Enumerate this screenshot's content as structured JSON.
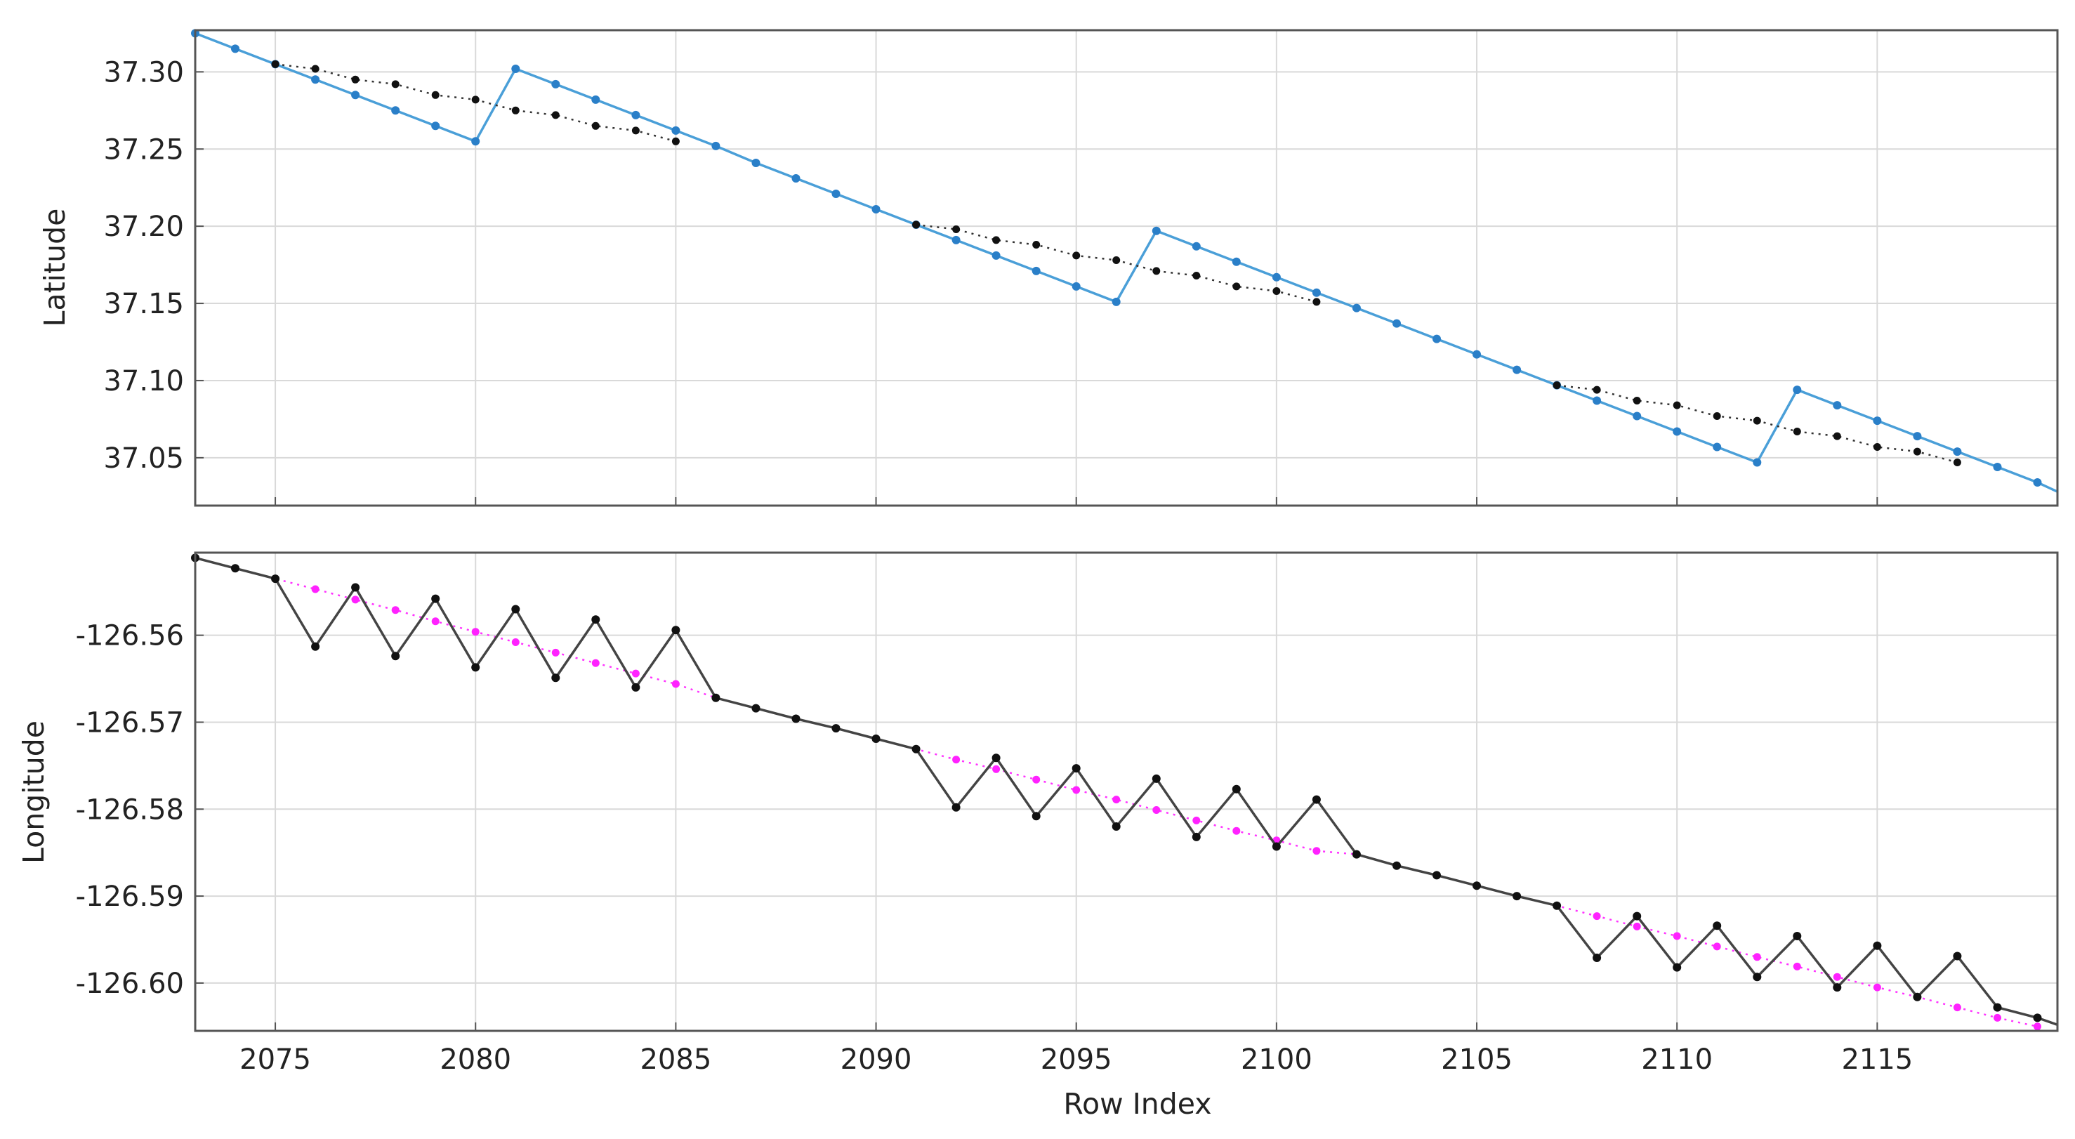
{
  "chart_data": [
    {
      "type": "line",
      "ylabel": "Latitude",
      "xlabel": "",
      "xlim": [
        2073,
        2119.5
      ],
      "ylim": [
        37.019,
        37.327
      ],
      "x_ticks": [
        2075,
        2080,
        2085,
        2090,
        2095,
        2100,
        2105,
        2110,
        2115
      ],
      "y_ticks": [
        37.05,
        37.1,
        37.15,
        37.2,
        37.25,
        37.3
      ],
      "y_tick_labels": [
        "37.05",
        "37.10",
        "37.15",
        "37.20",
        "37.25",
        "37.30"
      ],
      "grid": true,
      "series": [
        {
          "color": "#4a9fd8",
          "line": "solid",
          "marker_color": "#2a7fc8",
          "points": [
            [
              2073,
              37.325
            ],
            [
              2074,
              37.315
            ],
            [
              2075,
              37.305
            ],
            [
              2076,
              37.295
            ],
            [
              2077,
              37.285
            ],
            [
              2078,
              37.275
            ],
            [
              2079,
              37.265
            ],
            [
              2080,
              37.255
            ],
            [
              2081,
              37.302
            ],
            [
              2082,
              37.292
            ],
            [
              2083,
              37.282
            ],
            [
              2084,
              37.272
            ],
            [
              2085,
              37.262
            ],
            [
              2086,
              37.252
            ],
            [
              2087,
              37.241
            ],
            [
              2088,
              37.231
            ],
            [
              2089,
              37.221
            ],
            [
              2090,
              37.211
            ],
            [
              2091,
              37.201
            ],
            [
              2092,
              37.191
            ],
            [
              2093,
              37.181
            ],
            [
              2094,
              37.171
            ],
            [
              2095,
              37.161
            ],
            [
              2096,
              37.151
            ],
            [
              2097,
              37.197
            ],
            [
              2098,
              37.187
            ],
            [
              2099,
              37.177
            ],
            [
              2100,
              37.167
            ],
            [
              2101,
              37.157
            ],
            [
              2102,
              37.147
            ],
            [
              2103,
              37.137
            ],
            [
              2104,
              37.127
            ],
            [
              2105,
              37.117
            ],
            [
              2106,
              37.107
            ],
            [
              2107,
              37.097
            ],
            [
              2108,
              37.087
            ],
            [
              2109,
              37.077
            ],
            [
              2110,
              37.067
            ],
            [
              2111,
              37.057
            ],
            [
              2112,
              37.047
            ],
            [
              2113,
              37.094
            ],
            [
              2114,
              37.084
            ],
            [
              2115,
              37.074
            ],
            [
              2116,
              37.064
            ],
            [
              2117,
              37.054
            ],
            [
              2118,
              37.044
            ],
            [
              2119,
              37.034
            ],
            [
              2119.5,
              37.028
            ]
          ]
        },
        {
          "color": "#333333",
          "line": "dotted",
          "marker_color": "#111111",
          "points": [
            [
              2075,
              37.305
            ],
            [
              2076,
              37.302
            ],
            [
              2077,
              37.295
            ],
            [
              2078,
              37.292
            ],
            [
              2079,
              37.285
            ],
            [
              2080,
              37.282
            ],
            [
              2081,
              37.275
            ],
            [
              2082,
              37.272
            ],
            [
              2083,
              37.265
            ],
            [
              2084,
              37.262
            ],
            [
              2085,
              37.255
            ]
          ]
        },
        {
          "color": "#333333",
          "line": "dotted",
          "marker_color": "#111111",
          "points": [
            [
              2091,
              37.201
            ],
            [
              2092,
              37.198
            ],
            [
              2093,
              37.191
            ],
            [
              2094,
              37.188
            ],
            [
              2095,
              37.181
            ],
            [
              2096,
              37.178
            ],
            [
              2097,
              37.171
            ],
            [
              2098,
              37.168
            ],
            [
              2099,
              37.161
            ],
            [
              2100,
              37.158
            ],
            [
              2101,
              37.151
            ]
          ]
        },
        {
          "color": "#333333",
          "line": "dotted",
          "marker_color": "#111111",
          "points": [
            [
              2107,
              37.097
            ],
            [
              2108,
              37.094
            ],
            [
              2109,
              37.087
            ],
            [
              2110,
              37.084
            ],
            [
              2111,
              37.077
            ],
            [
              2112,
              37.074
            ],
            [
              2113,
              37.067
            ],
            [
              2114,
              37.064
            ],
            [
              2115,
              37.057
            ],
            [
              2116,
              37.054
            ],
            [
              2117,
              37.047
            ]
          ]
        }
      ]
    },
    {
      "type": "line",
      "ylabel": "Longitude",
      "xlabel": "Row Index",
      "xlim": [
        2073,
        2119.5
      ],
      "ylim": [
        -126.6055,
        -126.5505
      ],
      "x_ticks": [
        2075,
        2080,
        2085,
        2090,
        2095,
        2100,
        2105,
        2110,
        2115
      ],
      "x_tick_labels": [
        "2075",
        "2080",
        "2085",
        "2090",
        "2095",
        "2100",
        "2105",
        "2110",
        "2115"
      ],
      "y_ticks": [
        -126.56,
        -126.57,
        -126.58,
        -126.59,
        -126.6
      ],
      "y_tick_labels": [
        "-126.56",
        "-126.57",
        "-126.58",
        "-126.59",
        "-126.60"
      ],
      "grid": true,
      "series": [
        {
          "color": "#ff33ff",
          "line": "dotted",
          "marker_color": "#ff22ff",
          "points": [
            [
              2073,
              -126.5511
            ],
            [
              2074,
              -126.5523
            ],
            [
              2075,
              -126.5535
            ],
            [
              2076,
              -126.5547
            ],
            [
              2077,
              -126.5559
            ],
            [
              2078,
              -126.5571
            ],
            [
              2079,
              -126.5584
            ],
            [
              2080,
              -126.5596
            ],
            [
              2081,
              -126.5608
            ],
            [
              2082,
              -126.562
            ],
            [
              2083,
              -126.5632
            ],
            [
              2084,
              -126.5644
            ],
            [
              2085,
              -126.5656
            ],
            [
              2086,
              -126.5672
            ],
            [
              2087,
              -126.5684
            ],
            [
              2088,
              -126.5696
            ],
            [
              2089,
              -126.5707
            ],
            [
              2090,
              -126.5719
            ],
            [
              2091,
              -126.5731
            ],
            [
              2092,
              -126.5743
            ],
            [
              2093,
              -126.5754
            ],
            [
              2094,
              -126.5766
            ],
            [
              2095,
              -126.5778
            ],
            [
              2096,
              -126.5789
            ],
            [
              2097,
              -126.5801
            ],
            [
              2098,
              -126.5813
            ],
            [
              2099,
              -126.5825
            ],
            [
              2100,
              -126.5836
            ],
            [
              2101,
              -126.5848
            ],
            [
              2102,
              -126.5852
            ],
            [
              2103,
              -126.5865
            ],
            [
              2104,
              -126.5876
            ],
            [
              2105,
              -126.5888
            ],
            [
              2106,
              -126.59
            ],
            [
              2107,
              -126.5911
            ],
            [
              2108,
              -126.5923
            ],
            [
              2109,
              -126.5935
            ],
            [
              2110,
              -126.5946
            ],
            [
              2111,
              -126.5958
            ],
            [
              2112,
              -126.597
            ],
            [
              2113,
              -126.5981
            ],
            [
              2114,
              -126.5993
            ],
            [
              2115,
              -126.6005
            ],
            [
              2116,
              -126.6016
            ],
            [
              2117,
              -126.6028
            ],
            [
              2118,
              -126.604
            ],
            [
              2119,
              -126.605
            ]
          ]
        },
        {
          "color": "#444444",
          "line": "solid",
          "marker_color": "#111111",
          "points": [
            [
              2073,
              -126.5511
            ],
            [
              2074,
              -126.5523
            ],
            [
              2075,
              -126.5535
            ],
            [
              2076,
              -126.5613
            ],
            [
              2077,
              -126.5545
            ],
            [
              2078,
              -126.5624
            ],
            [
              2079,
              -126.5558
            ],
            [
              2080,
              -126.5637
            ],
            [
              2081,
              -126.557
            ],
            [
              2082,
              -126.5649
            ],
            [
              2083,
              -126.5582
            ],
            [
              2084,
              -126.566
            ],
            [
              2085,
              -126.5594
            ],
            [
              2086,
              -126.5672
            ],
            [
              2087,
              -126.5684
            ],
            [
              2088,
              -126.5696
            ],
            [
              2089,
              -126.5707
            ],
            [
              2090,
              -126.5719
            ],
            [
              2091,
              -126.5731
            ],
            [
              2092,
              -126.5798
            ],
            [
              2093,
              -126.5741
            ],
            [
              2094,
              -126.5808
            ],
            [
              2095,
              -126.5753
            ],
            [
              2096,
              -126.582
            ],
            [
              2097,
              -126.5765
            ],
            [
              2098,
              -126.5832
            ],
            [
              2099,
              -126.5777
            ],
            [
              2100,
              -126.5843
            ],
            [
              2101,
              -126.5789
            ],
            [
              2102,
              -126.5852
            ],
            [
              2103,
              -126.5865
            ],
            [
              2104,
              -126.5876
            ],
            [
              2105,
              -126.5888
            ],
            [
              2106,
              -126.59
            ],
            [
              2107,
              -126.5911
            ],
            [
              2108,
              -126.5971
            ],
            [
              2109,
              -126.5923
            ],
            [
              2110,
              -126.5982
            ],
            [
              2111,
              -126.5934
            ],
            [
              2112,
              -126.5993
            ],
            [
              2113,
              -126.5946
            ],
            [
              2114,
              -126.6005
            ],
            [
              2115,
              -126.5957
            ],
            [
              2116,
              -126.6016
            ],
            [
              2117,
              -126.5969
            ],
            [
              2118,
              -126.6028
            ],
            [
              2119,
              -126.604
            ],
            [
              2119.5,
              -126.6048
            ]
          ]
        }
      ]
    }
  ]
}
